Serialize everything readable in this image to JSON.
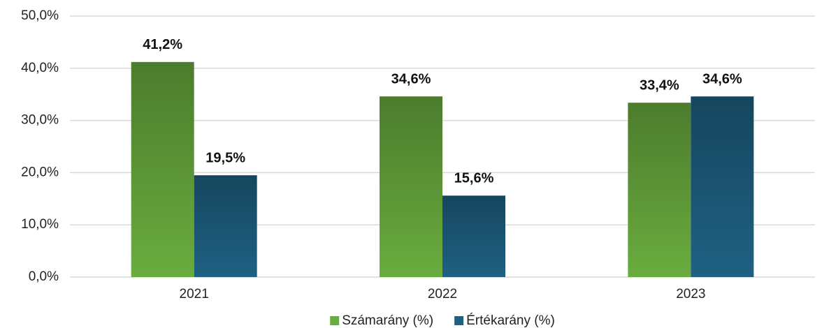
{
  "chart_data": {
    "type": "bar",
    "categories": [
      "2021",
      "2022",
      "2023"
    ],
    "series": [
      {
        "name": "Számarány (%)",
        "color": "#6aac3e",
        "values": [
          41.2,
          34.6,
          33.4
        ],
        "value_labels": [
          "41,2%",
          "34,6%",
          "33,4%"
        ]
      },
      {
        "name": "Értékarány (%)",
        "color": "#1f6183",
        "values": [
          19.5,
          15.6,
          34.6
        ],
        "value_labels": [
          "19,5%",
          "15,6%",
          "34,6%"
        ]
      }
    ],
    "ylim": [
      0,
      50
    ],
    "yticks": [
      {
        "value": 0,
        "label": "0,0%"
      },
      {
        "value": 10,
        "label": "10,0%"
      },
      {
        "value": 20,
        "label": "20,0%"
      },
      {
        "value": 30,
        "label": "30,0%"
      },
      {
        "value": 40,
        "label": "40,0%"
      },
      {
        "value": 50,
        "label": "50,0%"
      }
    ],
    "grid": true,
    "legend": "bottom"
  }
}
